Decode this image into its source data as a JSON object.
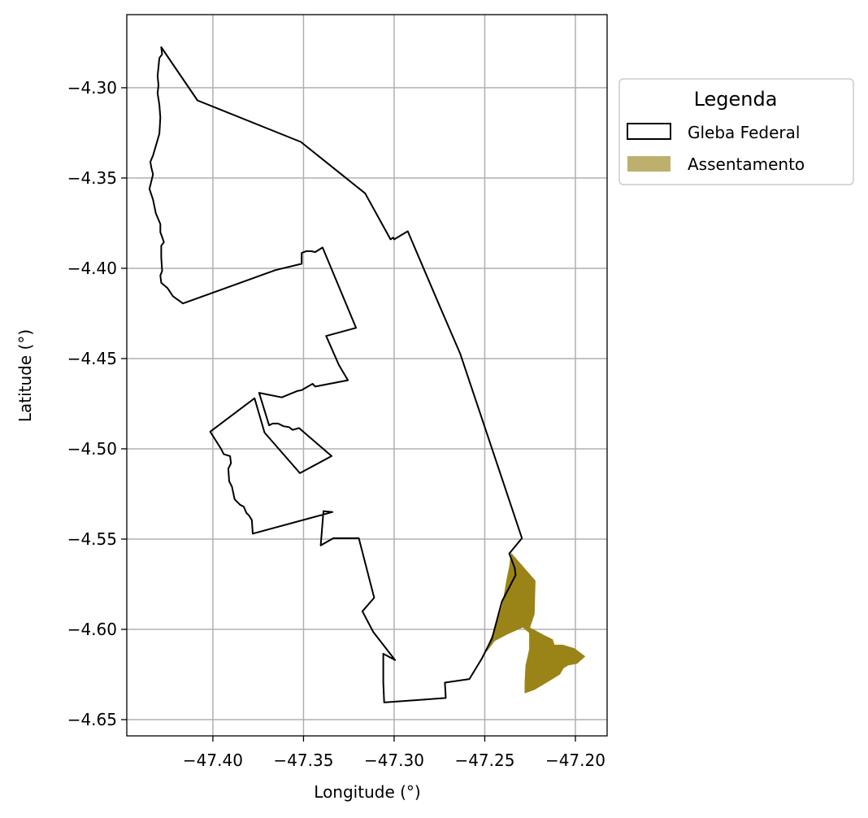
{
  "chart_data": {
    "type": "map",
    "xlabel": "Longitude (°)",
    "ylabel": "Latitude (°)",
    "xlim": [
      -47.4475,
      -47.1825
    ],
    "ylim": [
      -4.659,
      -4.2595
    ],
    "xticks": [
      -47.4,
      -47.35,
      -47.3,
      -47.25,
      -47.2
    ],
    "yticks": [
      -4.3,
      -4.35,
      -4.4,
      -4.45,
      -4.5,
      -4.55,
      -4.6,
      -4.65
    ],
    "xtick_labels": [
      "−47.40",
      "−47.35",
      "−47.30",
      "−47.25",
      "−47.20"
    ],
    "ytick_labels": [
      "−4.30",
      "−4.35",
      "−4.40",
      "−4.45",
      "−4.50",
      "−4.55",
      "−4.60",
      "−4.65"
    ],
    "grid": true,
    "legend": {
      "title": "Legenda",
      "placement": "outside-upper-right",
      "entries": [
        {
          "label": "Gleba Federal",
          "style": "outline",
          "color": "#000000"
        },
        {
          "label": "Assentamento",
          "style": "fill",
          "color": "#bdb06f"
        }
      ]
    },
    "layers": [
      {
        "name": "Gleba Federal",
        "stroke": "#000000",
        "fill": "none",
        "coordinates": [
          [
            -47.4285,
            -4.2775
          ],
          [
            -47.4085,
            -4.307
          ],
          [
            -47.3515,
            -4.33
          ],
          [
            -47.316,
            -4.3585
          ],
          [
            -47.302,
            -4.384
          ],
          [
            -47.3005,
            -4.383
          ],
          [
            -47.3,
            -4.384
          ],
          [
            -47.2925,
            -4.3795
          ],
          [
            -47.2755,
            -4.4195
          ],
          [
            -47.2635,
            -4.4475
          ],
          [
            -47.2295,
            -4.5495
          ],
          [
            -47.2365,
            -4.558
          ],
          [
            -47.2335,
            -4.566
          ],
          [
            -47.233,
            -4.57
          ],
          [
            -47.2405,
            -4.5845
          ],
          [
            -47.246,
            -4.605
          ],
          [
            -47.2515,
            -4.616
          ],
          [
            -47.2585,
            -4.6275
          ],
          [
            -47.272,
            -4.6295
          ],
          [
            -47.2715,
            -4.638
          ],
          [
            -47.3055,
            -4.6405
          ],
          [
            -47.306,
            -4.6295
          ],
          [
            -47.306,
            -4.6135
          ],
          [
            -47.2995,
            -4.617
          ],
          [
            -47.3115,
            -4.6015
          ],
          [
            -47.3175,
            -4.59
          ],
          [
            -47.311,
            -4.5825
          ],
          [
            -47.3195,
            -4.5495
          ],
          [
            -47.3335,
            -4.5495
          ],
          [
            -47.3405,
            -4.5535
          ],
          [
            -47.339,
            -4.5345
          ],
          [
            -47.334,
            -4.535
          ],
          [
            -47.378,
            -4.547
          ],
          [
            -47.3785,
            -4.5395
          ],
          [
            -47.38,
            -4.537
          ],
          [
            -47.3815,
            -4.5355
          ],
          [
            -47.383,
            -4.532
          ],
          [
            -47.385,
            -4.531
          ],
          [
            -47.388,
            -4.528
          ],
          [
            -47.3895,
            -4.521
          ],
          [
            -47.391,
            -4.518
          ],
          [
            -47.3915,
            -4.511
          ],
          [
            -47.39,
            -4.508
          ],
          [
            -47.3905,
            -4.504
          ],
          [
            -47.394,
            -4.503
          ],
          [
            -47.3955,
            -4.5
          ],
          [
            -47.4015,
            -4.4905
          ],
          [
            -47.377,
            -4.472
          ],
          [
            -47.3715,
            -4.491
          ],
          [
            -47.352,
            -4.5135
          ],
          [
            -47.3345,
            -4.504
          ],
          [
            -47.3525,
            -4.4885
          ],
          [
            -47.356,
            -4.4895
          ],
          [
            -47.358,
            -4.488
          ],
          [
            -47.361,
            -4.4875
          ],
          [
            -47.364,
            -4.486
          ],
          [
            -47.367,
            -4.486
          ],
          [
            -47.369,
            -4.487
          ],
          [
            -47.3745,
            -4.469
          ],
          [
            -47.362,
            -4.4715
          ],
          [
            -47.3535,
            -4.468
          ],
          [
            -47.351,
            -4.4675
          ],
          [
            -47.345,
            -4.464
          ],
          [
            -47.3435,
            -4.4655
          ],
          [
            -47.3255,
            -4.462
          ],
          [
            -47.3305,
            -4.4535
          ],
          [
            -47.3375,
            -4.4375
          ],
          [
            -47.321,
            -4.433
          ],
          [
            -47.3395,
            -4.3885
          ],
          [
            -47.3435,
            -4.391
          ],
          [
            -47.346,
            -4.3905
          ],
          [
            -47.3485,
            -4.3905
          ],
          [
            -47.351,
            -4.3915
          ],
          [
            -47.351,
            -4.3975
          ],
          [
            -47.3655,
            -4.401
          ],
          [
            -47.4165,
            -4.4195
          ],
          [
            -47.422,
            -4.4155
          ],
          [
            -47.425,
            -4.411
          ],
          [
            -47.4285,
            -4.408
          ],
          [
            -47.429,
            -4.404
          ],
          [
            -47.428,
            -4.4015
          ],
          [
            -47.4285,
            -4.394
          ],
          [
            -47.4285,
            -4.3875
          ],
          [
            -47.427,
            -4.3855
          ],
          [
            -47.429,
            -4.38
          ],
          [
            -47.429,
            -4.3755
          ],
          [
            -47.4315,
            -4.3695
          ],
          [
            -47.433,
            -4.362
          ],
          [
            -47.435,
            -4.356
          ],
          [
            -47.433,
            -4.348
          ],
          [
            -47.434,
            -4.344
          ],
          [
            -47.4345,
            -4.341
          ],
          [
            -47.433,
            -4.3375
          ],
          [
            -47.4295,
            -4.3255
          ],
          [
            -47.429,
            -4.3165
          ],
          [
            -47.4295,
            -4.3095
          ],
          [
            -47.4305,
            -4.303
          ],
          [
            -47.43,
            -4.2985
          ],
          [
            -47.4305,
            -4.2935
          ],
          [
            -47.43,
            -4.2885
          ],
          [
            -47.4295,
            -4.2835
          ],
          [
            -47.428,
            -4.2815
          ],
          [
            -47.4285,
            -4.2775
          ]
        ]
      },
      {
        "name": "Assentamento",
        "stroke": "none",
        "fill": "#9a8417",
        "coordinates": [
          [
            -47.2355,
            -4.5575
          ],
          [
            -47.222,
            -4.573
          ],
          [
            -47.2225,
            -4.5915
          ],
          [
            -47.225,
            -4.599
          ],
          [
            -47.2175,
            -4.603
          ],
          [
            -47.2125,
            -4.6055
          ],
          [
            -47.2115,
            -4.6085
          ],
          [
            -47.207,
            -4.6085
          ],
          [
            -47.2005,
            -4.6105
          ],
          [
            -47.1945,
            -4.615
          ],
          [
            -47.199,
            -4.619
          ],
          [
            -47.204,
            -4.62
          ],
          [
            -47.2065,
            -4.6215
          ],
          [
            -47.2085,
            -4.625
          ],
          [
            -47.215,
            -4.629
          ],
          [
            -47.2225,
            -4.6335
          ],
          [
            -47.228,
            -4.6355
          ],
          [
            -47.228,
            -4.6295
          ],
          [
            -47.2275,
            -4.62
          ],
          [
            -47.2255,
            -4.611
          ],
          [
            -47.2255,
            -4.602
          ],
          [
            -47.229,
            -4.599
          ],
          [
            -47.237,
            -4.6025
          ],
          [
            -47.2445,
            -4.6065
          ],
          [
            -47.249,
            -4.6125
          ],
          [
            -47.248,
            -4.608
          ],
          [
            -47.244,
            -4.5985
          ],
          [
            -47.2405,
            -4.587
          ],
          [
            -47.238,
            -4.5725
          ],
          [
            -47.2365,
            -4.565
          ],
          [
            -47.2355,
            -4.5575
          ]
        ]
      }
    ]
  }
}
